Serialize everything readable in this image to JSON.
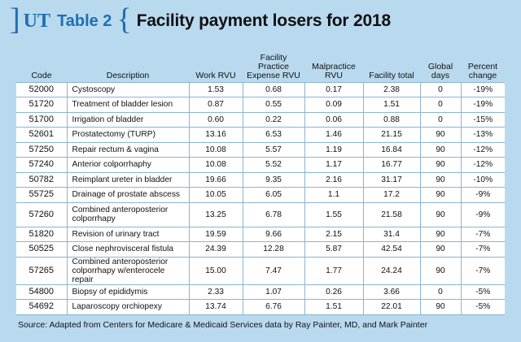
{
  "header": {
    "brand": "UT",
    "table_label": "Table 2",
    "title": "Facility payment losers for 2018"
  },
  "columns": [
    "Code",
    "Description",
    "Work RVU",
    "Facility Practice Expense RVU",
    "Malpractice RVU",
    "Facility total",
    "Global days",
    "Percent change"
  ],
  "rows": [
    [
      "52000",
      "Cystoscopy",
      "1.53",
      "0.68",
      "0.17",
      "2.38",
      "0",
      "-19%"
    ],
    [
      "51720",
      "Treatment of bladder lesion",
      "0.87",
      "0.55",
      "0.09",
      "1.51",
      "0",
      "-19%"
    ],
    [
      "51700",
      "Irrigation of bladder",
      "0.60",
      "0.22",
      "0.06",
      "0.88",
      "0",
      "-15%"
    ],
    [
      "52601",
      "Prostatectomy (TURP)",
      "13.16",
      "6.53",
      "1.46",
      "21.15",
      "90",
      "-13%"
    ],
    [
      "57250",
      "Repair rectum & vagina",
      "10.08",
      "5.57",
      "1.19",
      "16.84",
      "90",
      "-12%"
    ],
    [
      "57240",
      "Anterior colporrhaphy",
      "10.08",
      "5.52",
      "1.17",
      "16.77",
      "90",
      "-12%"
    ],
    [
      "50782",
      "Reimplant ureter in bladder",
      "19.66",
      "9.35",
      "2.16",
      "31.17",
      "90",
      "-10%"
    ],
    [
      "55725",
      "Drainage of prostate abscess",
      "10.05",
      "6.05",
      "1.1",
      "17.2",
      "90",
      "-9%"
    ],
    [
      "57260",
      "Combined anteroposterior colporrhapy",
      "13.25",
      "6.78",
      "1.55",
      "21.58",
      "90",
      "-9%"
    ],
    [
      "51820",
      "Revision of urinary tract",
      "19.59",
      "9.66",
      "2.15",
      "31.4",
      "90",
      "-7%"
    ],
    [
      "50525",
      "Close nephrovisceral fistula",
      "24.39",
      "12.28",
      "5.87",
      "42.54",
      "90",
      "-7%"
    ],
    [
      "57265",
      "Combined anteroposterior colporrhapy w/enterocele repair",
      "15.00",
      "7.47",
      "1.77",
      "24.24",
      "90",
      "-7%"
    ],
    [
      "54800",
      "Biopsy of epididymis",
      "2.33",
      "1.07",
      "0.26",
      "3.66",
      "0",
      "-5%"
    ],
    [
      "54692",
      "Laparoscopy orchiopexy",
      "13.74",
      "6.76",
      "1.51",
      "22.01",
      "90",
      "-5%"
    ]
  ],
  "source": "Source: Adapted from Centers for Medicare & Medicaid Services data by Ray Painter, MD, and Mark Painter"
}
